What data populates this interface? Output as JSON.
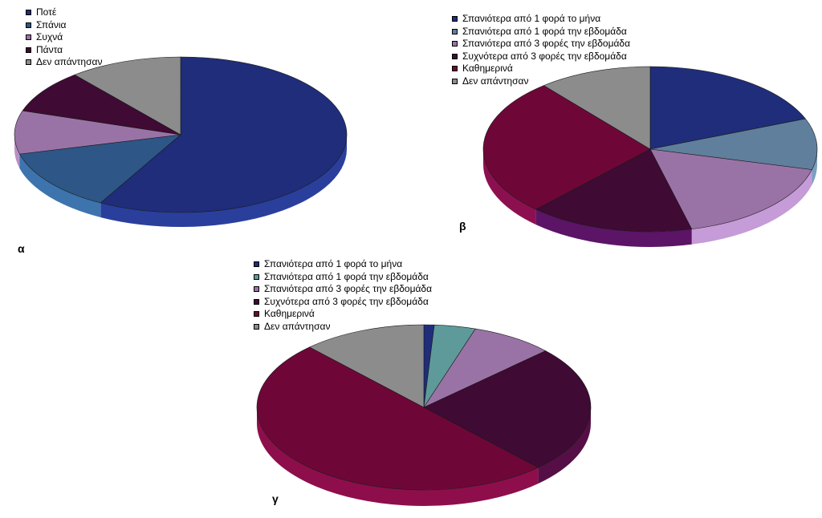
{
  "chart_data": [
    {
      "type": "pie",
      "panel_label": "α",
      "categories": [
        "Ποτέ",
        "Σπάνια",
        "Συχνά",
        "Πάντα",
        "Δεν απάντησαν"
      ],
      "values": [
        58,
        13,
        9,
        9,
        11
      ],
      "colors": [
        "#1f2d7a",
        "#2e5686",
        "#9a73a6",
        "#3f0a33",
        "#8c8c8c"
      ],
      "side_colors": [
        "#2a3f9c",
        "#3e74ad",
        "#b890c5",
        "#560f46",
        "#a6a6a6"
      ],
      "legend_position": "top-left"
    },
    {
      "type": "pie",
      "panel_label": "β",
      "categories": [
        "Σπανιότερα από 1 φορά το μήνα",
        "Σπανιότερα από 1 φορά την εβδομάδα",
        "Σπανιότερα από 3 φορές την εβδομάδα",
        "Συχνότερα από 3 φορές την εβδομάδα",
        "Καθημερινά",
        "Δεν απάντησαν"
      ],
      "values": [
        19,
        10,
        17,
        16,
        27,
        11
      ],
      "colors": [
        "#1f2d7a",
        "#5f7f9c",
        "#9a73a6",
        "#3f0a33",
        "#6e0737",
        "#8c8c8c"
      ],
      "side_colors": [
        "#2a3f9c",
        "#7a9ec0",
        "#c59bd8",
        "#5c1466",
        "#8c1050",
        "#a6a6a6"
      ],
      "legend_position": "top-left"
    },
    {
      "type": "pie",
      "panel_label": "γ",
      "categories": [
        "Σπανιότερα από 1 φορά το μήνα",
        "Σπανιότερα από 1 φορά την εβδομάδα",
        "Σπανιότερα από 3 φορές την εβδομάδα",
        "Συχνότερα από 3 φορές την εβδομάδα",
        "Καθημερινά",
        "Δεν απάντησαν"
      ],
      "values": [
        1,
        4,
        8,
        25,
        50,
        12
      ],
      "colors": [
        "#1f2d7a",
        "#5e9a9a",
        "#9a73a6",
        "#3f0a33",
        "#6e0737",
        "#8c8c8c"
      ],
      "side_colors": [
        "#2a3f9c",
        "#7bb7b7",
        "#b890c5",
        "#560f46",
        "#8e0e4c",
        "#a6a6a6"
      ],
      "legend_position": "top-left"
    }
  ]
}
